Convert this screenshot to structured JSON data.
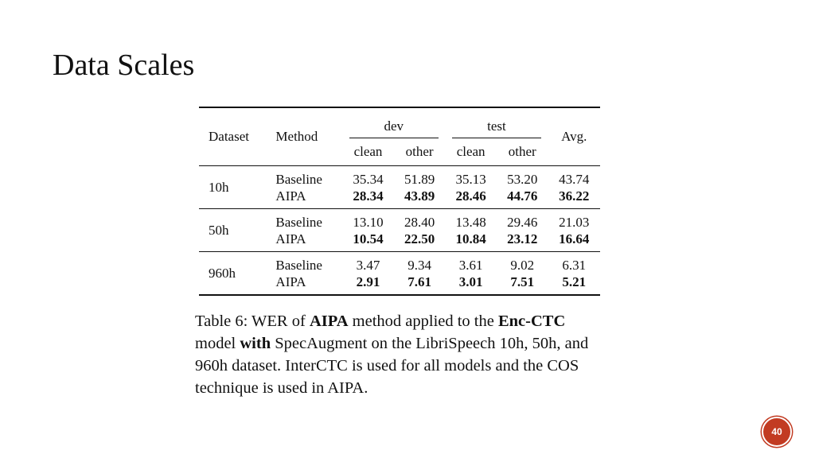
{
  "slide": {
    "title": "Data Scales",
    "page_number": "40"
  },
  "table": {
    "headers": {
      "dataset": "Dataset",
      "method": "Method",
      "dev": "dev",
      "test": "test",
      "avg": "Avg.",
      "dev_clean": "clean",
      "dev_other": "other",
      "test_clean": "clean",
      "test_other": "other"
    },
    "rows": [
      {
        "dataset": "10h",
        "baseline": {
          "method": "Baseline",
          "dev_clean": "35.34",
          "dev_other": "51.89",
          "test_clean": "35.13",
          "test_other": "53.20",
          "avg": "43.74"
        },
        "aipa": {
          "method": "AIPA",
          "dev_clean": "28.34",
          "dev_other": "43.89",
          "test_clean": "28.46",
          "test_other": "44.76",
          "avg": "36.22"
        }
      },
      {
        "dataset": "50h",
        "baseline": {
          "method": "Baseline",
          "dev_clean": "13.10",
          "dev_other": "28.40",
          "test_clean": "13.48",
          "test_other": "29.46",
          "avg": "21.03"
        },
        "aipa": {
          "method": "AIPA",
          "dev_clean": "10.54",
          "dev_other": "22.50",
          "test_clean": "10.84",
          "test_other": "23.12",
          "avg": "16.64"
        }
      },
      {
        "dataset": "960h",
        "baseline": {
          "method": "Baseline",
          "dev_clean": "3.47",
          "dev_other": "9.34",
          "test_clean": "3.61",
          "test_other": "9.02",
          "avg": "6.31"
        },
        "aipa": {
          "method": "AIPA",
          "dev_clean": "2.91",
          "dev_other": "7.61",
          "test_clean": "3.01",
          "test_other": "7.51",
          "avg": "5.21"
        }
      }
    ]
  },
  "caption": {
    "p1": "Table 6: WER of ",
    "b1": "AIPA",
    "p2": " method applied to the ",
    "b2": "Enc-CTC",
    "p3": " model ",
    "b3": "with",
    "p4": " SpecAugment on the LibriSpeech 10h, 50h, and 960h dataset. InterCTC is used for all models and the COS technique is used in AIPA."
  }
}
